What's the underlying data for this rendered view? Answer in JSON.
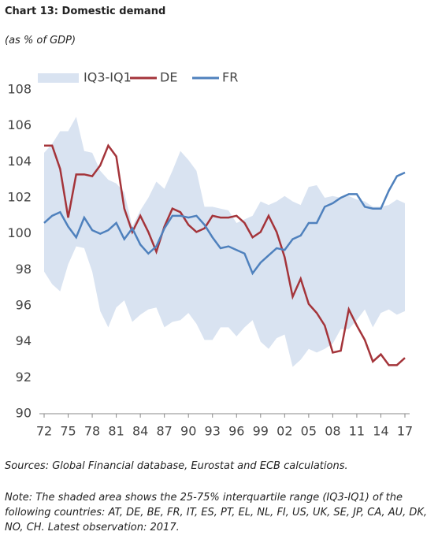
{
  "chart_data": {
    "type": "line",
    "title": "Chart 13: Domestic demand",
    "subtitle": "(as % of GDP)",
    "source": "Sources: Global Financial database, Eurostat and ECB calculations.",
    "note": "Note: The shaded area shows the 25-75% interquartile range (IQ3-IQ1) of the following countries: AT, DE, BE, FR, IT, ES, PT, EL, NL, FI, US, UK, SE, JP, CA, AU, DK, NO, CH. Latest observation: 2017.",
    "categories": [
      "72",
      null,
      null,
      "75",
      null,
      null,
      "78",
      null,
      null,
      "81",
      null,
      null,
      "84",
      null,
      null,
      "87",
      null,
      null,
      "90",
      null,
      null,
      "93",
      null,
      null,
      "96",
      null,
      null,
      "99",
      null,
      null,
      "02",
      null,
      null,
      "05",
      null,
      null,
      "08",
      null,
      null,
      "11",
      null,
      null,
      "14",
      null,
      null,
      "17"
    ],
    "ylim": [
      90,
      108
    ],
    "yticks": [
      90,
      92,
      94,
      96,
      98,
      100,
      102,
      104,
      106,
      108
    ],
    "series": [
      {
        "name": "IQ3-IQ1",
        "color": "#d9e3f1",
        "values": [
          104.5,
          105.0,
          105.7,
          105.7,
          106.5,
          104.6,
          104.5,
          103.5,
          103.0,
          102.8,
          102.3,
          100.4,
          101.3,
          102.0,
          102.9,
          102.5,
          103.5,
          104.6,
          104.1,
          103.5,
          101.5,
          101.5,
          101.4,
          101.3,
          100.6,
          100.8,
          101.0,
          101.8,
          101.6,
          101.8,
          102.1,
          101.8,
          101.6,
          102.6,
          102.7,
          102.0,
          102.1,
          102.0,
          102.1,
          101.9,
          101.8,
          101.5,
          101.5,
          101.6,
          101.9,
          101.7
        ],
        "lower": [
          97.9,
          97.2,
          96.8,
          98.3,
          99.3,
          99.2,
          97.9,
          95.7,
          94.8,
          95.9,
          96.3,
          95.1,
          95.5,
          95.8,
          95.9,
          94.8,
          95.1,
          95.2,
          95.6,
          95.0,
          94.1,
          94.1,
          94.8,
          94.8,
          94.3,
          94.8,
          95.2,
          94.0,
          93.6,
          94.2,
          94.4,
          92.6,
          93.0,
          93.6,
          93.4,
          93.6,
          93.9,
          94.7,
          94.7,
          95.2,
          95.8,
          94.8,
          95.6,
          95.8,
          95.5,
          95.7
        ]
      },
      {
        "name": "DE",
        "color": "#a4343a",
        "values": [
          104.9,
          104.9,
          103.6,
          100.9,
          103.3,
          103.3,
          103.2,
          103.8,
          104.9,
          104.3,
          101.4,
          100.1,
          101.0,
          100.1,
          99.0,
          100.4,
          101.4,
          101.2,
          100.5,
          100.1,
          100.3,
          101.0,
          100.9,
          100.9,
          101.0,
          100.6,
          99.8,
          100.1,
          101.0,
          100.1,
          98.7,
          96.5,
          97.5,
          96.1,
          95.6,
          94.9,
          93.4,
          93.5,
          95.8,
          94.9,
          94.1,
          92.9,
          93.3,
          92.7,
          92.7,
          93.1
        ]
      },
      {
        "name": "FR",
        "color": "#4f81bd",
        "values": [
          100.6,
          101.0,
          101.2,
          100.4,
          99.8,
          100.9,
          100.2,
          100.0,
          100.2,
          100.6,
          99.7,
          100.3,
          99.4,
          98.9,
          99.3,
          100.3,
          101.0,
          101.0,
          100.9,
          101.0,
          100.5,
          99.8,
          99.2,
          99.3,
          99.1,
          98.9,
          97.8,
          98.4,
          98.8,
          99.2,
          99.1,
          99.7,
          99.9,
          100.6,
          100.6,
          101.5,
          101.7,
          102.0,
          102.2,
          102.2,
          101.5,
          101.4,
          101.4,
          102.4,
          103.2,
          103.4
        ]
      }
    ]
  }
}
